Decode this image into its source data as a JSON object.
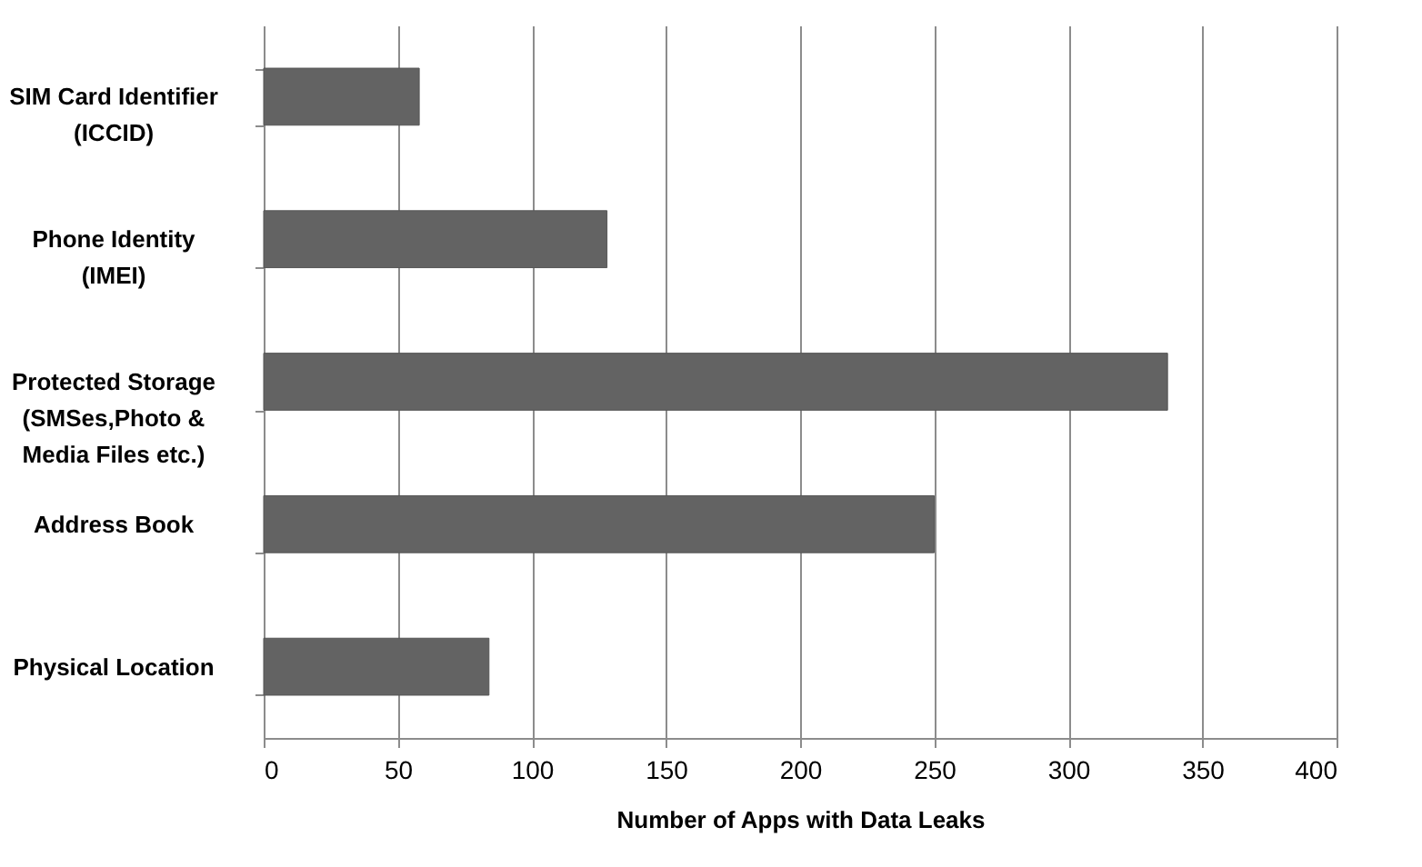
{
  "chart_data": {
    "type": "bar",
    "orientation": "horizontal",
    "xlabel": "Number of Apps with Data Leaks",
    "categories": [
      "SIM Card Identifier\n(ICCID)",
      "Phone Identity\n(IMEI)",
      "Protected Storage\n(SMSes,Photo &\nMedia Files etc.)",
      "Address Book",
      "Physical Location"
    ],
    "values": [
      58,
      128,
      337,
      250,
      84
    ],
    "color": "#636363",
    "xlim": [
      0,
      400
    ],
    "xticks": [
      0,
      50,
      100,
      150,
      200,
      250,
      300,
      350,
      400
    ],
    "grid": "x"
  }
}
